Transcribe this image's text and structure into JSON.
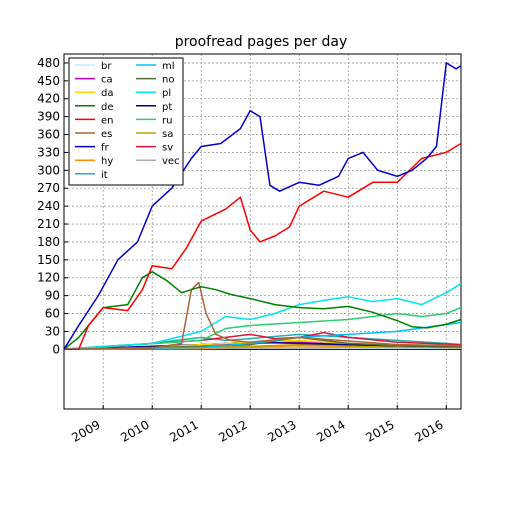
{
  "chart_data": {
    "type": "line",
    "title": "proofread pages per day",
    "xlabel": "",
    "ylabel": "",
    "xlim": [
      2008.2,
      2016.3
    ],
    "ylim": [
      -100,
      495
    ],
    "yticks": [
      0,
      30,
      60,
      90,
      120,
      150,
      180,
      210,
      240,
      270,
      300,
      330,
      360,
      390,
      420,
      450,
      480
    ],
    "xticks": [
      2009,
      2010,
      2011,
      2012,
      2013,
      2014,
      2015,
      2016
    ],
    "grid": true,
    "legend_position": "top-left",
    "legend_columns": [
      [
        "br",
        "ca",
        "da",
        "de",
        "en",
        "es",
        "fr",
        "hy",
        "it"
      ],
      [
        "ml",
        "no",
        "pl",
        "pt",
        "ru",
        "sa",
        "sv",
        "vec"
      ]
    ],
    "series": [
      {
        "name": "br",
        "color": "#bfefff",
        "x": [
          2008.2,
          2010,
          2012,
          2014,
          2016.3
        ],
        "y": [
          0,
          1,
          2,
          2,
          2
        ]
      },
      {
        "name": "ca",
        "color": "#bf00bf",
        "x": [
          2008.2,
          2010,
          2011,
          2012,
          2013,
          2014,
          2015,
          2016,
          2016.3
        ],
        "y": [
          0,
          2,
          8,
          10,
          12,
          8,
          6,
          5,
          5
        ]
      },
      {
        "name": "da",
        "color": "#ffd700",
        "x": [
          2008.2,
          2010,
          2011,
          2012,
          2013,
          2014,
          2015,
          2016.3
        ],
        "y": [
          0,
          3,
          8,
          12,
          15,
          10,
          8,
          6
        ]
      },
      {
        "name": "de",
        "color": "#008000",
        "x": [
          2008.2,
          2008.5,
          2009,
          2009.5,
          2009.8,
          2010,
          2010.3,
          2010.6,
          2011,
          2011.3,
          2011.6,
          2012,
          2012.5,
          2013,
          2013.5,
          2014,
          2014.5,
          2015,
          2015.3,
          2015.6,
          2016,
          2016.3
        ],
        "y": [
          0,
          20,
          70,
          75,
          120,
          130,
          115,
          95,
          105,
          100,
          92,
          85,
          75,
          70,
          68,
          72,
          62,
          48,
          38,
          36,
          42,
          50
        ]
      },
      {
        "name": "en",
        "color": "#ff0000",
        "x": [
          2008.2,
          2008.5,
          2008.7,
          2009,
          2009.5,
          2009.8,
          2010,
          2010.4,
          2010.7,
          2011,
          2011.5,
          2011.8,
          2012,
          2012.2,
          2012.5,
          2012.8,
          2013,
          2013.5,
          2014,
          2014.5,
          2015,
          2015.5,
          2016,
          2016.3
        ],
        "y": [
          0,
          0,
          40,
          70,
          65,
          100,
          140,
          135,
          170,
          215,
          235,
          255,
          200,
          180,
          190,
          205,
          240,
          265,
          255,
          280,
          280,
          320,
          330,
          345
        ]
      },
      {
        "name": "es",
        "color": "#aa6633",
        "x": [
          2008.2,
          2010,
          2010.6,
          2010.8,
          2010.95,
          2011.1,
          2011.3,
          2011.6,
          2012,
          2013,
          2014,
          2015,
          2016.3
        ],
        "y": [
          0,
          2,
          10,
          100,
          112,
          60,
          25,
          15,
          12,
          20,
          14,
          8,
          6
        ]
      },
      {
        "name": "fr",
        "color": "#0000cc",
        "x": [
          2008.2,
          2008.5,
          2008.9,
          2009,
          2009.3,
          2009.7,
          2010,
          2010.4,
          2010.8,
          2011,
          2011.4,
          2011.8,
          2012,
          2012.2,
          2012.4,
          2012.6,
          2013,
          2013.4,
          2013.8,
          2014,
          2014.3,
          2014.6,
          2015,
          2015.3,
          2015.6,
          2015.8,
          2016,
          2016.2,
          2016.3
        ],
        "y": [
          0,
          40,
          90,
          105,
          150,
          180,
          240,
          270,
          320,
          340,
          345,
          370,
          400,
          390,
          275,
          265,
          280,
          275,
          290,
          320,
          330,
          300,
          290,
          300,
          320,
          340,
          480,
          470,
          475
        ]
      },
      {
        "name": "hy",
        "color": "#ff8c00",
        "x": [
          2008.2,
          2011,
          2012,
          2013,
          2014,
          2015,
          2016.3
        ],
        "y": [
          0,
          2,
          4,
          6,
          5,
          4,
          3
        ]
      },
      {
        "name": "it",
        "color": "#20b2aa",
        "x": [
          2008.2,
          2009,
          2010,
          2010.5,
          2011,
          2011.5,
          2012,
          2013,
          2014,
          2015,
          2016,
          2016.3
        ],
        "y": [
          0,
          5,
          10,
          15,
          20,
          15,
          18,
          25,
          20,
          15,
          10,
          8
        ]
      },
      {
        "name": "ml",
        "color": "#00bfff",
        "x": [
          2008.2,
          2011,
          2012,
          2013,
          2014,
          2015,
          2016.3
        ],
        "y": [
          0,
          3,
          10,
          20,
          25,
          30,
          45
        ]
      },
      {
        "name": "no",
        "color": "#556b2f",
        "x": [
          2008.2,
          2011,
          2012,
          2013,
          2014,
          2015,
          2016.3
        ],
        "y": [
          0,
          5,
          8,
          20,
          10,
          6,
          4
        ]
      },
      {
        "name": "pl",
        "color": "#00e5ee",
        "x": [
          2008.2,
          2010,
          2010.5,
          2011,
          2011.5,
          2012,
          2012.5,
          2013,
          2013.5,
          2014,
          2014.5,
          2015,
          2015.5,
          2016,
          2016.3
        ],
        "y": [
          0,
          10,
          20,
          30,
          55,
          50,
          60,
          75,
          82,
          88,
          80,
          85,
          75,
          95,
          110
        ]
      },
      {
        "name": "pt",
        "color": "#00008b",
        "x": [
          2008.2,
          2011,
          2012,
          2013,
          2014,
          2015,
          2016.3
        ],
        "y": [
          0,
          8,
          12,
          10,
          8,
          6,
          4
        ]
      },
      {
        "name": "ru",
        "color": "#2ecc71",
        "x": [
          2008.2,
          2011,
          2011.5,
          2012,
          2013,
          2014,
          2015,
          2015.5,
          2016,
          2016.3
        ],
        "y": [
          0,
          15,
          35,
          40,
          45,
          50,
          60,
          55,
          60,
          70
        ]
      },
      {
        "name": "sa",
        "color": "#b8a000",
        "x": [
          2008.2,
          2012,
          2013,
          2014,
          2015,
          2016.3
        ],
        "y": [
          0,
          5,
          8,
          6,
          4,
          3
        ]
      },
      {
        "name": "sv",
        "color": "#dc143c",
        "x": [
          2008.2,
          2011,
          2011.5,
          2012,
          2012.5,
          2013,
          2013.5,
          2014,
          2015,
          2016.3
        ],
        "y": [
          0,
          15,
          20,
          25,
          18,
          20,
          28,
          20,
          12,
          8
        ]
      },
      {
        "name": "vec",
        "color": "#aaaaaa",
        "x": [
          2008.2,
          2012,
          2014,
          2016.3
        ],
        "y": [
          0,
          2,
          3,
          3
        ]
      }
    ]
  }
}
